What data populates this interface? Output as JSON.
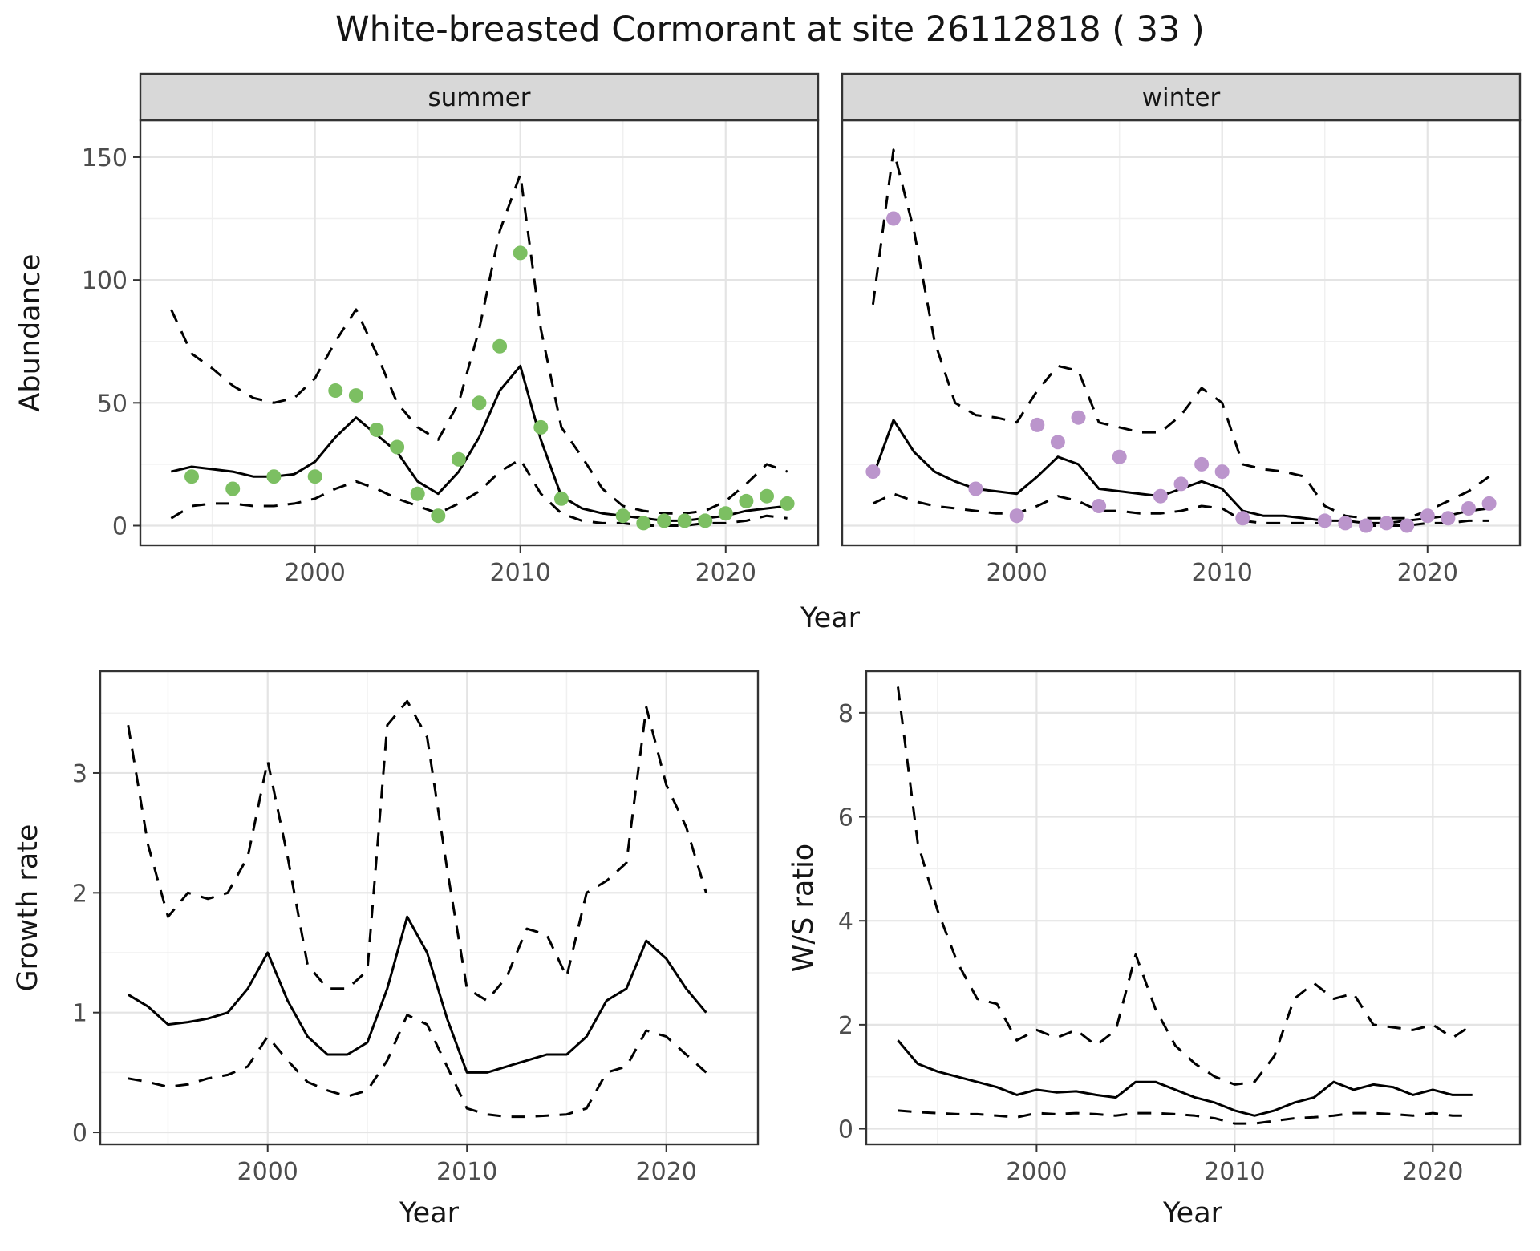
{
  "title": "White-breasted Cormorant at site 26112818 ( 33 )",
  "axes": {
    "year": "Year",
    "abundance": "Abundance",
    "growth": "Growth rate",
    "ws": "W/S ratio"
  },
  "colors": {
    "summer_point": "#7cbf62",
    "winter_point": "#bb95cc",
    "line": "#000000",
    "grid_major": "#e4e4e4",
    "grid_minor": "#f0f0f0",
    "strip_fill": "#d8d8d8",
    "panel_border": "#333333",
    "tick_text": "#4d4d4d",
    "background": "#ffffff"
  },
  "chart_data": [
    {
      "id": "abundance-summer",
      "type": "line+scatter",
      "facet_label": "summer",
      "xlabel": "Year",
      "ylabel": "Abundance",
      "xlim": [
        1991.5,
        2024.5
      ],
      "ylim": [
        -8,
        165
      ],
      "xticks": [
        2000,
        2010,
        2020
      ],
      "yticks": [
        0,
        50,
        100,
        150
      ],
      "grid": true,
      "legend": "none",
      "x": [
        1993,
        1994,
        1995,
        1996,
        1997,
        1998,
        1999,
        2000,
        2001,
        2002,
        2003,
        2004,
        2005,
        2006,
        2007,
        2008,
        2009,
        2010,
        2011,
        2012,
        2013,
        2014,
        2015,
        2016,
        2017,
        2018,
        2019,
        2020,
        2021,
        2022,
        2023
      ],
      "series": [
        {
          "name": "mean estimate",
          "style": "solid",
          "values": [
            22,
            24,
            23,
            22,
            20,
            20,
            21,
            26,
            36,
            44,
            37,
            30,
            18,
            13,
            22,
            36,
            55,
            65,
            35,
            12,
            7,
            5,
            4,
            3,
            2,
            2,
            3,
            4,
            6,
            7,
            8
          ]
        },
        {
          "name": "upper 95% CI",
          "style": "dashed",
          "values": [
            88,
            70,
            64,
            57,
            52,
            50,
            52,
            60,
            75,
            88,
            70,
            50,
            40,
            35,
            50,
            80,
            120,
            143,
            80,
            40,
            28,
            15,
            8,
            6,
            5,
            5,
            6,
            10,
            17,
            25,
            22
          ]
        },
        {
          "name": "lower 95% CI",
          "style": "dashed",
          "values": [
            3,
            8,
            9,
            9,
            8,
            8,
            9,
            11,
            15,
            18,
            15,
            11,
            8,
            5,
            9,
            14,
            22,
            27,
            13,
            5,
            2,
            1,
            1,
            0,
            0,
            0,
            1,
            1,
            2,
            4,
            3
          ]
        }
      ],
      "points": {
        "name": "observed counts (summer)",
        "color": "#7cbf62",
        "x": [
          1994,
          1996,
          1998,
          2000,
          2001,
          2002,
          2003,
          2004,
          2005,
          2006,
          2007,
          2008,
          2009,
          2010,
          2011,
          2012,
          2015,
          2016,
          2017,
          2018,
          2019,
          2020,
          2021,
          2022,
          2023
        ],
        "y": [
          20,
          15,
          20,
          20,
          55,
          53,
          39,
          32,
          13,
          4,
          27,
          50,
          73,
          111,
          40,
          11,
          4,
          1,
          2,
          2,
          2,
          5,
          10,
          12,
          9
        ]
      }
    },
    {
      "id": "abundance-winter",
      "type": "line+scatter",
      "facet_label": "winter",
      "xlabel": "Year",
      "ylabel": "Abundance",
      "xlim": [
        1991.5,
        2024.5
      ],
      "ylim": [
        -8,
        165
      ],
      "xticks": [
        2000,
        2010,
        2020
      ],
      "yticks": [
        0,
        50,
        100,
        150
      ],
      "grid": true,
      "legend": "none",
      "x": [
        1993,
        1994,
        1995,
        1996,
        1997,
        1998,
        1999,
        2000,
        2001,
        2002,
        2003,
        2004,
        2005,
        2006,
        2007,
        2008,
        2009,
        2010,
        2011,
        2012,
        2013,
        2014,
        2015,
        2016,
        2017,
        2018,
        2019,
        2020,
        2021,
        2022,
        2023
      ],
      "series": [
        {
          "name": "mean estimate",
          "style": "solid",
          "values": [
            20,
            43,
            30,
            22,
            18,
            15,
            14,
            13,
            20,
            28,
            25,
            15,
            14,
            13,
            12,
            15,
            18,
            15,
            6,
            4,
            4,
            3,
            2,
            2,
            1,
            1,
            2,
            3,
            4,
            6,
            7
          ]
        },
        {
          "name": "upper 95% CI",
          "style": "dashed",
          "values": [
            90,
            153,
            120,
            75,
            50,
            45,
            44,
            42,
            55,
            65,
            63,
            42,
            40,
            38,
            38,
            45,
            56,
            50,
            25,
            23,
            22,
            20,
            8,
            4,
            3,
            3,
            3,
            6,
            10,
            14,
            20
          ]
        },
        {
          "name": "lower 95% CI",
          "style": "dashed",
          "values": [
            9,
            13,
            10,
            8,
            7,
            6,
            5,
            5,
            8,
            12,
            10,
            6,
            6,
            5,
            5,
            6,
            8,
            7,
            2,
            1,
            1,
            1,
            1,
            0,
            0,
            0,
            0,
            1,
            1,
            2,
            2
          ]
        }
      ],
      "points": {
        "name": "observed counts (winter)",
        "color": "#bb95cc",
        "x": [
          1993,
          1994,
          1998,
          2000,
          2001,
          2002,
          2003,
          2004,
          2005,
          2007,
          2008,
          2009,
          2010,
          2011,
          2015,
          2016,
          2017,
          2018,
          2019,
          2020,
          2021,
          2022,
          2023
        ],
        "y": [
          22,
          125,
          15,
          4,
          41,
          34,
          44,
          8,
          28,
          12,
          17,
          25,
          22,
          3,
          2,
          1,
          0,
          1,
          0,
          4,
          3,
          7,
          9
        ]
      }
    },
    {
      "id": "growth-rate",
      "type": "line",
      "facet_label": "",
      "xlabel": "Year",
      "ylabel": "Growth rate",
      "xlim": [
        1991.6,
        2024.6
      ],
      "ylim": [
        -0.1,
        3.85
      ],
      "xticks": [
        2000,
        2010,
        2020
      ],
      "yticks": [
        0,
        1,
        2,
        3
      ],
      "grid": true,
      "legend": "none",
      "x": [
        1993,
        1994,
        1995,
        1996,
        1997,
        1998,
        1999,
        2000,
        2001,
        2002,
        2003,
        2004,
        2005,
        2006,
        2007,
        2008,
        2009,
        2010,
        2011,
        2012,
        2013,
        2014,
        2015,
        2016,
        2017,
        2018,
        2019,
        2020,
        2021,
        2022
      ],
      "series": [
        {
          "name": "mean growth rate",
          "style": "solid",
          "values": [
            1.15,
            1.05,
            0.9,
            0.92,
            0.95,
            1.0,
            1.2,
            1.5,
            1.1,
            0.8,
            0.65,
            0.65,
            0.75,
            1.2,
            1.8,
            1.5,
            0.95,
            0.5,
            0.5,
            0.55,
            0.6,
            0.65,
            0.65,
            0.8,
            1.1,
            1.2,
            1.6,
            1.45,
            1.2,
            1.0
          ]
        },
        {
          "name": "upper 95% CI",
          "style": "dashed",
          "values": [
            3.4,
            2.4,
            1.8,
            2.0,
            1.95,
            2.0,
            2.3,
            3.1,
            2.3,
            1.4,
            1.2,
            1.2,
            1.35,
            3.4,
            3.6,
            3.3,
            2.2,
            1.2,
            1.1,
            1.3,
            1.7,
            1.65,
            1.3,
            2.0,
            2.1,
            2.25,
            3.55,
            2.9,
            2.55,
            2.0
          ]
        },
        {
          "name": "lower 95% CI",
          "style": "dashed",
          "values": [
            0.45,
            0.42,
            0.38,
            0.4,
            0.45,
            0.48,
            0.55,
            0.8,
            0.6,
            0.42,
            0.35,
            0.3,
            0.35,
            0.6,
            0.98,
            0.9,
            0.55,
            0.2,
            0.15,
            0.13,
            0.13,
            0.14,
            0.15,
            0.2,
            0.5,
            0.55,
            0.85,
            0.8,
            0.65,
            0.5
          ]
        }
      ]
    },
    {
      "id": "ws-ratio",
      "type": "line",
      "facet_label": "",
      "xlabel": "Year",
      "ylabel": "W/S ratio",
      "xlim": [
        1991.4,
        2024.4
      ],
      "ylim": [
        -0.3,
        8.8
      ],
      "xticks": [
        2000,
        2010,
        2020
      ],
      "yticks": [
        0,
        2,
        4,
        6,
        8
      ],
      "grid": true,
      "legend": "none",
      "x": [
        1993,
        1994,
        1995,
        1996,
        1997,
        1998,
        1999,
        2000,
        2001,
        2002,
        2003,
        2004,
        2005,
        2006,
        2007,
        2008,
        2009,
        2010,
        2011,
        2012,
        2013,
        2014,
        2015,
        2016,
        2017,
        2018,
        2019,
        2020,
        2021,
        2022
      ],
      "series": [
        {
          "name": "mean W/S ratio",
          "style": "solid",
          "values": [
            1.7,
            1.25,
            1.1,
            1.0,
            0.9,
            0.8,
            0.65,
            0.75,
            0.7,
            0.72,
            0.65,
            0.6,
            0.9,
            0.9,
            0.75,
            0.6,
            0.5,
            0.35,
            0.25,
            0.35,
            0.5,
            0.6,
            0.9,
            0.75,
            0.85,
            0.8,
            0.65,
            0.75,
            0.65,
            0.65
          ]
        },
        {
          "name": "upper 95% CI",
          "style": "dashed",
          "values": [
            8.5,
            5.5,
            4.2,
            3.2,
            2.5,
            2.4,
            1.7,
            1.9,
            1.75,
            1.9,
            1.6,
            1.9,
            3.35,
            2.3,
            1.6,
            1.25,
            1.0,
            0.85,
            0.9,
            1.4,
            2.5,
            2.8,
            2.5,
            2.6,
            2.0,
            1.95,
            1.9,
            2.0,
            1.75,
            2.0
          ]
        },
        {
          "name": "lower 95% CI",
          "style": "dashed",
          "values": [
            0.35,
            0.32,
            0.3,
            0.28,
            0.28,
            0.25,
            0.22,
            0.3,
            0.28,
            0.3,
            0.28,
            0.25,
            0.3,
            0.3,
            0.28,
            0.25,
            0.2,
            0.1,
            0.1,
            0.15,
            0.2,
            0.22,
            0.25,
            0.3,
            0.3,
            0.28,
            0.25,
            0.3,
            0.25,
            0.25
          ]
        }
      ]
    }
  ]
}
